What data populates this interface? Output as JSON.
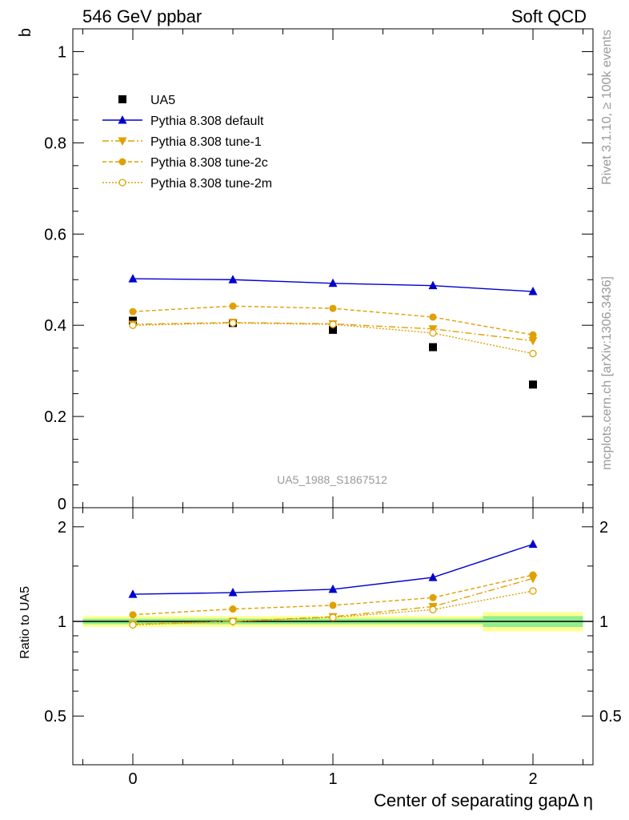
{
  "header": {
    "left": "546 GeV ppbar",
    "right": "Soft QCD"
  },
  "side_labels": {
    "rivet": "Rivet 3.1.10, ≥ 100k events",
    "mcplots": "mcplots.cern.ch [arXiv:1306.3436]"
  },
  "watermark": "UA5_1988_S1867512",
  "colors": {
    "data": "#000000",
    "default": "#0000cc",
    "tune": "#e0a000",
    "band_inner": "#90ee90",
    "band_outer": "#ffff90"
  },
  "chart_data": [
    {
      "type": "line",
      "ylabel": "b",
      "xlim": [
        -0.3,
        2.3
      ],
      "ylim": [
        0,
        1.05
      ],
      "yticks": [
        "0",
        "0.2",
        "0.4",
        "0.6",
        "0.8",
        "1"
      ],
      "legend_placement": "top-left",
      "series": [
        {
          "name": "UA5",
          "marker": "square",
          "x": [
            0,
            0.5,
            1,
            1.5,
            2
          ],
          "values": [
            0.41,
            0.405,
            0.39,
            0.352,
            0.27
          ]
        },
        {
          "name": "Pythia 8.308 default",
          "marker": "triangle-up",
          "line": "solid",
          "x": [
            0,
            0.5,
            1,
            1.5,
            2
          ],
          "values": [
            0.502,
            0.5,
            0.492,
            0.487,
            0.474
          ]
        },
        {
          "name": "Pythia 8.308 tune-1",
          "marker": "triangle-down",
          "line": "dashdot",
          "x": [
            0,
            0.5,
            1,
            1.5,
            2
          ],
          "values": [
            0.402,
            0.406,
            0.403,
            0.392,
            0.366
          ]
        },
        {
          "name": "Pythia 8.308 tune-2c",
          "marker": "circle",
          "line": "dashed",
          "x": [
            0,
            0.5,
            1,
            1.5,
            2
          ],
          "values": [
            0.43,
            0.442,
            0.437,
            0.418,
            0.379
          ]
        },
        {
          "name": "Pythia 8.308 tune-2m",
          "marker": "open-circle",
          "line": "dotted",
          "x": [
            0,
            0.5,
            1,
            1.5,
            2
          ],
          "values": [
            0.4,
            0.405,
            0.402,
            0.383,
            0.338
          ]
        }
      ]
    },
    {
      "type": "line",
      "ylabel": "Ratio to UA5",
      "xlabel": "Center of separating gapΔ η",
      "xticks": [
        "0",
        "1",
        "2"
      ],
      "xlim": [
        -0.3,
        2.3
      ],
      "ylim": [
        0.35,
        2.3
      ],
      "yticks": [
        "0.5",
        "1",
        "2"
      ],
      "yticks_right": [
        "0.5",
        "1",
        "2"
      ],
      "bands": [
        {
          "x0": -0.25,
          "x1": 1.75,
          "inner": [
            0.98,
            1.02
          ],
          "outer": [
            0.96,
            1.04
          ]
        },
        {
          "x0": 1.75,
          "x1": 2.25,
          "inner": [
            0.96,
            1.04
          ],
          "outer": [
            0.93,
            1.07
          ]
        }
      ],
      "series": [
        {
          "name": "Pythia 8.308 default",
          "x": [
            0,
            0.5,
            1,
            1.5,
            2
          ],
          "values": [
            1.22,
            1.235,
            1.265,
            1.38,
            1.76
          ]
        },
        {
          "name": "Pythia 8.308 tune-1",
          "x": [
            0,
            0.5,
            1,
            1.5,
            2
          ],
          "values": [
            0.98,
            1.0,
            1.035,
            1.115,
            1.37
          ]
        },
        {
          "name": "Pythia 8.308 tune-2c",
          "x": [
            0,
            0.5,
            1,
            1.5,
            2
          ],
          "values": [
            1.05,
            1.095,
            1.125,
            1.19,
            1.405
          ]
        },
        {
          "name": "Pythia 8.308 tune-2m",
          "x": [
            0,
            0.5,
            1,
            1.5,
            2
          ],
          "values": [
            0.975,
            1.0,
            1.03,
            1.09,
            1.25
          ]
        }
      ]
    }
  ]
}
